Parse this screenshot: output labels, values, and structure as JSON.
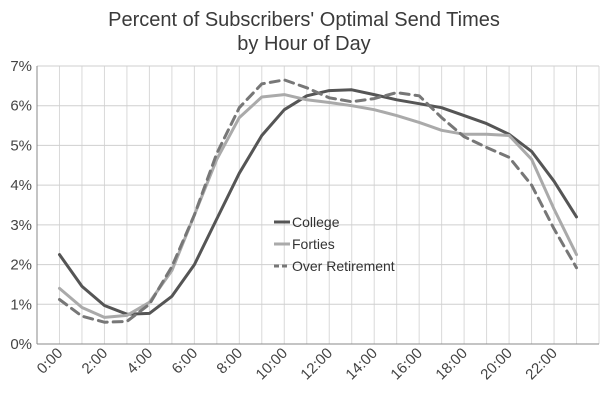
{
  "chart_data": {
    "type": "line",
    "title_lines": [
      "Percent of Subscribers' Optimal Send Times",
      "by Hour of Day"
    ],
    "xlabel": "",
    "ylabel": "",
    "x_tick_labels": [
      "0:00",
      "2:00",
      "4:00",
      "6:00",
      "8:00",
      "10:00",
      "12:00",
      "14:00",
      "16:00",
      "18:00",
      "20:00",
      "22:00"
    ],
    "y_tick_labels": [
      "0%",
      "1%",
      "2%",
      "3%",
      "4%",
      "5%",
      "6%",
      "7%"
    ],
    "ylim": [
      0,
      7
    ],
    "xlim": [
      -1,
      24
    ],
    "grid": true,
    "legend_position": "center",
    "x": [
      0,
      1,
      2,
      3,
      4,
      5,
      6,
      7,
      8,
      9,
      10,
      11,
      12,
      13,
      14,
      15,
      16,
      17,
      18,
      19,
      20,
      21,
      22,
      23
    ],
    "series": [
      {
        "name": "College",
        "color": "#555555",
        "style": "solid",
        "values": [
          2.25,
          1.45,
          0.97,
          0.75,
          0.77,
          1.2,
          2.0,
          3.15,
          4.3,
          5.25,
          5.9,
          6.25,
          6.38,
          6.4,
          6.28,
          6.15,
          6.05,
          5.95,
          5.75,
          5.55,
          5.28,
          4.85,
          4.1,
          3.2
        ]
      },
      {
        "name": "Forties",
        "color": "#aaaaaa",
        "style": "solid",
        "values": [
          1.4,
          0.92,
          0.67,
          0.72,
          1.05,
          1.85,
          3.25,
          4.65,
          5.7,
          6.22,
          6.28,
          6.15,
          6.08,
          6.0,
          5.9,
          5.75,
          5.58,
          5.38,
          5.28,
          5.28,
          5.25,
          4.65,
          3.4,
          2.25
        ]
      },
      {
        "name": "Over Retirement",
        "color": "#777777",
        "style": "dashed",
        "values": [
          1.12,
          0.7,
          0.55,
          0.57,
          1.0,
          1.95,
          3.25,
          4.8,
          5.95,
          6.55,
          6.65,
          6.45,
          6.2,
          6.1,
          6.18,
          6.33,
          6.25,
          5.7,
          5.22,
          4.95,
          4.7,
          4.0,
          2.9,
          1.92
        ]
      }
    ]
  }
}
